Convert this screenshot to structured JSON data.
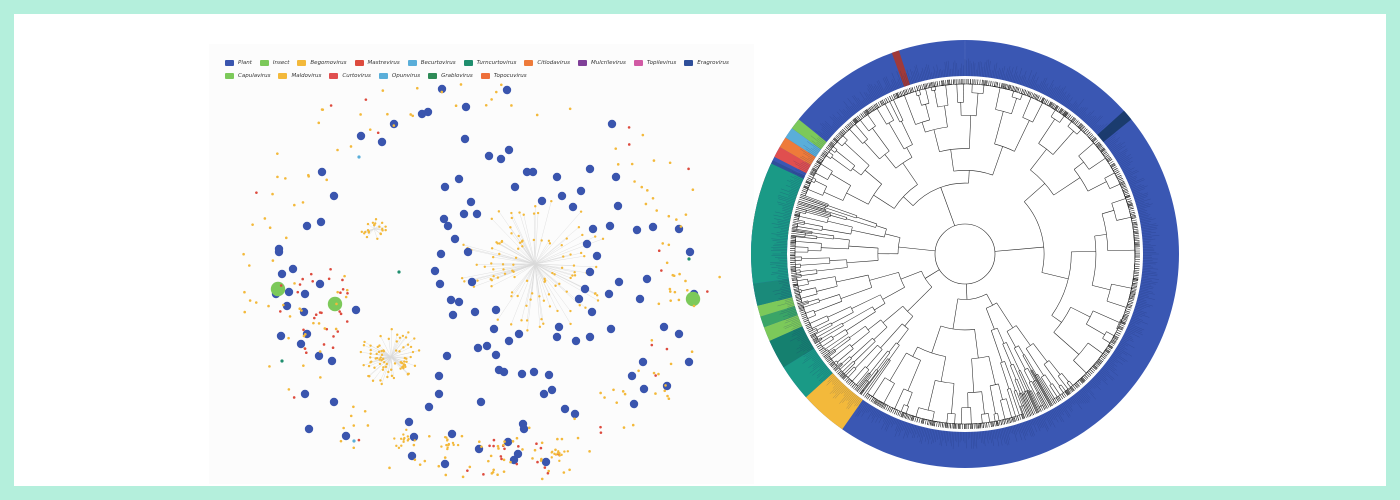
{
  "legend": [
    {
      "label": "Plant",
      "color": "#3a55ae"
    },
    {
      "label": "Insect",
      "color": "#7cc95a"
    },
    {
      "label": "Begomovirus",
      "color": "#f3b93b"
    },
    {
      "label": "Mastrevirus",
      "color": "#dd4b3e"
    },
    {
      "label": "Becurtovirus",
      "color": "#5aaed9"
    },
    {
      "label": "Turncurtovirus",
      "color": "#1f8e6e"
    },
    {
      "label": "Citlodavirus",
      "color": "#ee7b3a"
    },
    {
      "label": "Mulcrilevirus",
      "color": "#7f3f98"
    },
    {
      "label": "Topilevirus",
      "color": "#d15aa4"
    },
    {
      "label": "Eragrovirus",
      "color": "#2f4f9a"
    },
    {
      "label": "Capulavirus",
      "color": "#7cc95a"
    },
    {
      "label": "Maldovirus",
      "color": "#f3b93b"
    },
    {
      "label": "Curtovirus",
      "color": "#e04f4f"
    },
    {
      "label": "Opunvirus",
      "color": "#5aaed9"
    },
    {
      "label": "Grablovirus",
      "color": "#2e8b57"
    },
    {
      "label": "Topocuvirus",
      "color": "#ee6f3a"
    }
  ],
  "colors": {
    "plant": "#3a55ae",
    "insect": "#7cc95a",
    "begomovirus": "#f3b93b",
    "mastrevirus": "#dd4b3e",
    "becurtovirus": "#5aaed9",
    "turncurtovirus": "#1f8e6e",
    "ring": "#3a57b3",
    "edge": "#d9d9d9",
    "branch": "#222222"
  }
}
